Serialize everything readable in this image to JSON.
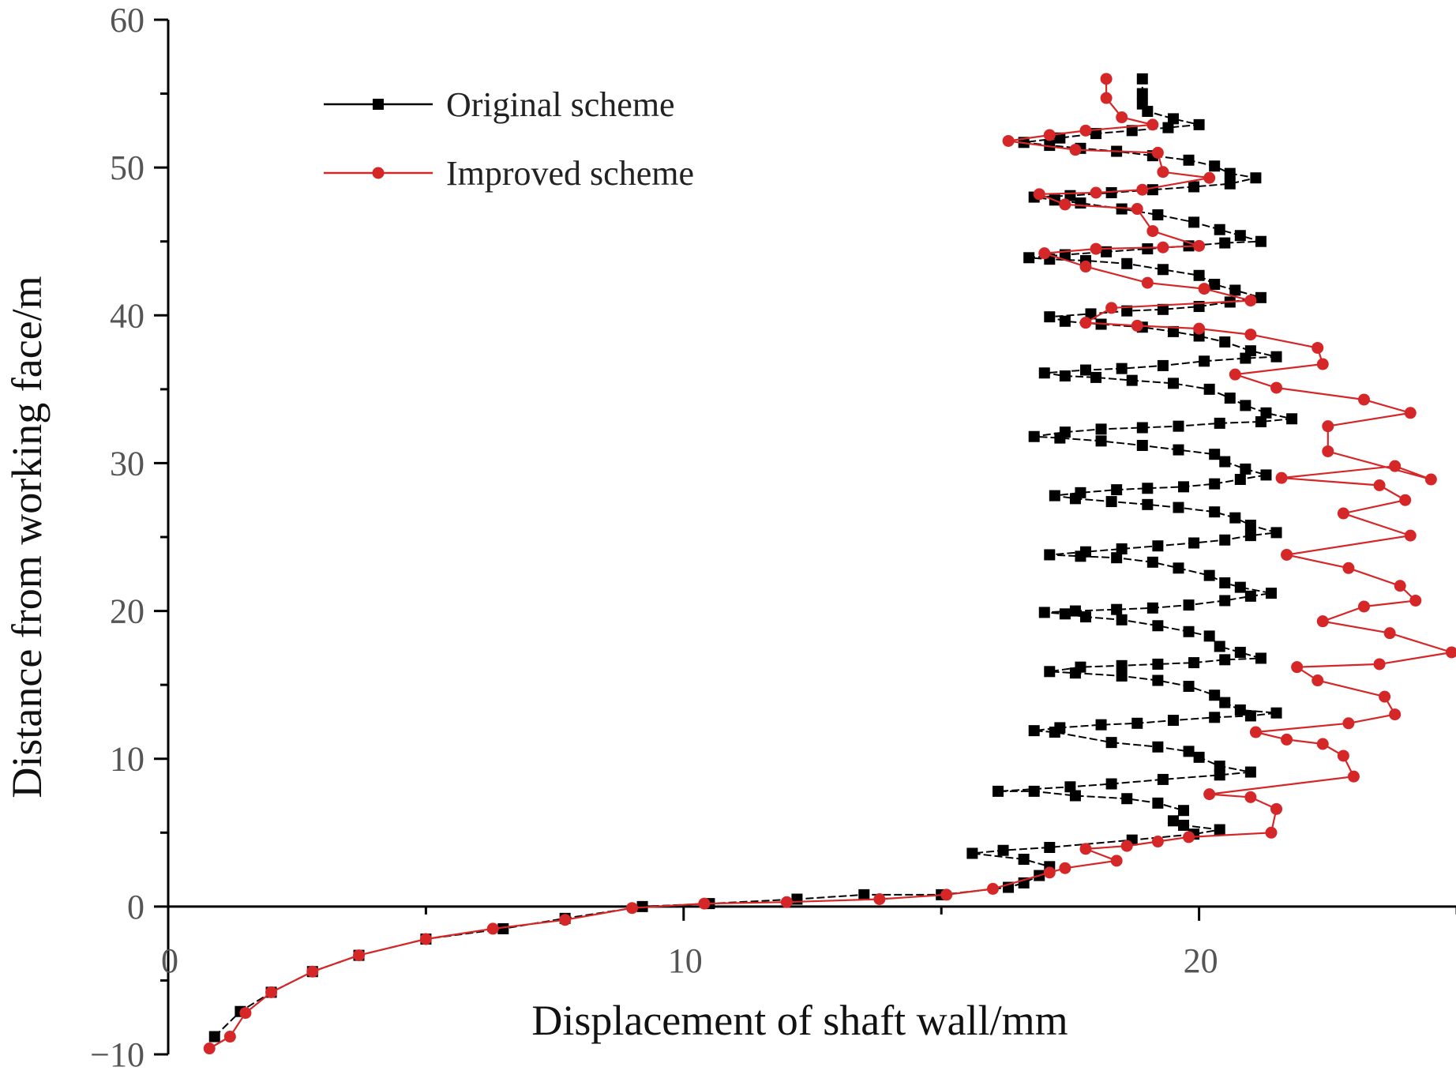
{
  "chart_data": {
    "type": "line",
    "xlabel": "Displacement of shaft wall/mm",
    "ylabel": "Distance from working face/m",
    "xlim": [
      0,
      25
    ],
    "ylim": [
      -10,
      60
    ],
    "xticks": [
      0,
      10,
      20
    ],
    "yticks": [
      -10,
      0,
      10,
      20,
      30,
      40,
      50,
      60
    ],
    "grid": false,
    "legend_position": "top-left",
    "series": [
      {
        "name": "Original scheme",
        "color": "#000000",
        "marker": "square",
        "points": [
          [
            0.9,
            -8.8
          ],
          [
            1.4,
            -7.1
          ],
          [
            2.0,
            -5.8
          ],
          [
            2.8,
            -4.4
          ],
          [
            3.7,
            -3.3
          ],
          [
            5.0,
            -2.2
          ],
          [
            6.5,
            -1.5
          ],
          [
            7.7,
            -0.8
          ],
          [
            9.2,
            0.0
          ],
          [
            10.5,
            0.2
          ],
          [
            12.2,
            0.5
          ],
          [
            13.5,
            0.8
          ],
          [
            15.0,
            0.8
          ],
          [
            16.3,
            1.3
          ],
          [
            16.6,
            1.6
          ],
          [
            16.9,
            2.1
          ],
          [
            17.1,
            2.7
          ],
          [
            16.6,
            3.2
          ],
          [
            15.6,
            3.6
          ],
          [
            16.2,
            3.8
          ],
          [
            17.1,
            4.0
          ],
          [
            18.7,
            4.5
          ],
          [
            19.9,
            4.9
          ],
          [
            20.4,
            5.2
          ],
          [
            19.7,
            5.5
          ],
          [
            19.5,
            5.8
          ],
          [
            19.7,
            6.5
          ],
          [
            19.2,
            7.0
          ],
          [
            18.6,
            7.3
          ],
          [
            17.6,
            7.5
          ],
          [
            16.8,
            7.8
          ],
          [
            16.1,
            7.8
          ],
          [
            17.5,
            8.1
          ],
          [
            18.3,
            8.3
          ],
          [
            19.3,
            8.6
          ],
          [
            20.4,
            8.9
          ],
          [
            21.0,
            9.1
          ],
          [
            20.4,
            9.5
          ],
          [
            20.0,
            10.1
          ],
          [
            19.8,
            10.5
          ],
          [
            19.2,
            10.8
          ],
          [
            18.3,
            11.1
          ],
          [
            17.2,
            11.8
          ],
          [
            16.8,
            11.9
          ],
          [
            17.3,
            12.1
          ],
          [
            18.1,
            12.3
          ],
          [
            18.8,
            12.4
          ],
          [
            19.5,
            12.6
          ],
          [
            20.3,
            12.8
          ],
          [
            21.0,
            12.9
          ],
          [
            21.5,
            13.1
          ],
          [
            20.8,
            13.3
          ],
          [
            20.5,
            13.8
          ],
          [
            20.3,
            14.3
          ],
          [
            19.8,
            14.9
          ],
          [
            19.2,
            15.3
          ],
          [
            18.5,
            15.6
          ],
          [
            17.6,
            15.8
          ],
          [
            17.1,
            15.9
          ],
          [
            17.7,
            16.2
          ],
          [
            18.5,
            16.3
          ],
          [
            19.2,
            16.4
          ],
          [
            19.9,
            16.5
          ],
          [
            20.5,
            16.7
          ],
          [
            21.2,
            16.8
          ],
          [
            20.8,
            17.2
          ],
          [
            20.4,
            17.6
          ],
          [
            20.2,
            18.3
          ],
          [
            19.8,
            18.6
          ],
          [
            19.2,
            19.0
          ],
          [
            18.5,
            19.4
          ],
          [
            17.8,
            19.6
          ],
          [
            17.4,
            19.8
          ],
          [
            17.0,
            19.9
          ],
          [
            17.6,
            20.0
          ],
          [
            18.4,
            20.1
          ],
          [
            19.1,
            20.2
          ],
          [
            19.8,
            20.4
          ],
          [
            20.5,
            20.7
          ],
          [
            21.0,
            21.0
          ],
          [
            21.4,
            21.2
          ],
          [
            20.8,
            21.6
          ],
          [
            20.5,
            21.9
          ],
          [
            20.2,
            22.4
          ],
          [
            19.6,
            22.9
          ],
          [
            19.1,
            23.3
          ],
          [
            18.4,
            23.6
          ],
          [
            17.7,
            23.7
          ],
          [
            17.1,
            23.8
          ],
          [
            17.8,
            24.0
          ],
          [
            18.5,
            24.2
          ],
          [
            19.2,
            24.4
          ],
          [
            19.9,
            24.6
          ],
          [
            20.5,
            24.8
          ],
          [
            21.0,
            25.1
          ],
          [
            21.5,
            25.3
          ],
          [
            21.0,
            25.8
          ],
          [
            20.7,
            26.3
          ],
          [
            20.3,
            26.7
          ],
          [
            19.6,
            27.0
          ],
          [
            19.0,
            27.2
          ],
          [
            18.3,
            27.4
          ],
          [
            17.6,
            27.6
          ],
          [
            17.2,
            27.8
          ],
          [
            17.7,
            28.0
          ],
          [
            18.4,
            28.2
          ],
          [
            19.0,
            28.3
          ],
          [
            19.7,
            28.4
          ],
          [
            20.3,
            28.6
          ],
          [
            20.8,
            28.9
          ],
          [
            21.3,
            29.2
          ],
          [
            20.9,
            29.6
          ],
          [
            20.5,
            30.1
          ],
          [
            20.3,
            30.6
          ],
          [
            19.6,
            30.9
          ],
          [
            18.9,
            31.2
          ],
          [
            18.1,
            31.5
          ],
          [
            17.3,
            31.7
          ],
          [
            16.8,
            31.8
          ],
          [
            17.4,
            32.1
          ],
          [
            18.1,
            32.3
          ],
          [
            18.9,
            32.4
          ],
          [
            19.6,
            32.5
          ],
          [
            20.4,
            32.7
          ],
          [
            21.2,
            32.8
          ],
          [
            21.8,
            33.0
          ],
          [
            21.3,
            33.4
          ],
          [
            20.9,
            33.9
          ],
          [
            20.6,
            34.4
          ],
          [
            20.2,
            35.0
          ],
          [
            19.5,
            35.4
          ],
          [
            18.7,
            35.6
          ],
          [
            18.0,
            35.8
          ],
          [
            17.4,
            35.9
          ],
          [
            17.0,
            36.1
          ],
          [
            17.8,
            36.3
          ],
          [
            18.5,
            36.4
          ],
          [
            19.3,
            36.6
          ],
          [
            20.1,
            36.9
          ],
          [
            20.9,
            37.1
          ],
          [
            21.5,
            37.2
          ],
          [
            21.0,
            37.6
          ],
          [
            20.5,
            38.2
          ],
          [
            20.0,
            38.6
          ],
          [
            19.5,
            38.9
          ],
          [
            18.9,
            39.2
          ],
          [
            18.1,
            39.4
          ],
          [
            17.4,
            39.6
          ],
          [
            17.1,
            39.9
          ],
          [
            17.9,
            40.1
          ],
          [
            18.6,
            40.3
          ],
          [
            19.3,
            40.4
          ],
          [
            20.0,
            40.6
          ],
          [
            20.6,
            40.9
          ],
          [
            21.2,
            41.2
          ],
          [
            20.7,
            41.7
          ],
          [
            20.3,
            42.1
          ],
          [
            20.0,
            42.7
          ],
          [
            19.3,
            43.1
          ],
          [
            18.6,
            43.5
          ],
          [
            17.8,
            43.7
          ],
          [
            17.1,
            43.8
          ],
          [
            16.7,
            43.9
          ],
          [
            17.4,
            44.1
          ],
          [
            18.2,
            44.3
          ],
          [
            19.0,
            44.5
          ],
          [
            19.8,
            44.7
          ],
          [
            20.5,
            44.9
          ],
          [
            21.2,
            45.0
          ],
          [
            20.8,
            45.4
          ],
          [
            20.4,
            45.8
          ],
          [
            19.9,
            46.3
          ],
          [
            19.2,
            46.8
          ],
          [
            18.5,
            47.2
          ],
          [
            17.7,
            47.6
          ],
          [
            17.2,
            47.8
          ],
          [
            16.8,
            48.0
          ],
          [
            17.5,
            48.1
          ],
          [
            18.3,
            48.3
          ],
          [
            19.1,
            48.5
          ],
          [
            19.9,
            48.7
          ],
          [
            20.6,
            48.9
          ],
          [
            21.1,
            49.3
          ],
          [
            20.6,
            49.6
          ],
          [
            20.3,
            50.1
          ],
          [
            19.8,
            50.5
          ],
          [
            19.1,
            50.8
          ],
          [
            18.4,
            51.1
          ],
          [
            17.7,
            51.3
          ],
          [
            17.1,
            51.5
          ],
          [
            16.6,
            51.7
          ],
          [
            17.3,
            52.0
          ],
          [
            18.0,
            52.3
          ],
          [
            18.7,
            52.5
          ],
          [
            19.4,
            52.7
          ],
          [
            20.0,
            52.9
          ],
          [
            19.5,
            53.3
          ],
          [
            19.0,
            53.8
          ],
          [
            18.9,
            54.3
          ],
          [
            18.9,
            55.0
          ],
          [
            18.9,
            56.0
          ]
        ]
      },
      {
        "name": "Improved scheme",
        "color": "#d62728",
        "marker": "circle",
        "points": [
          [
            0.8,
            -9.6
          ],
          [
            1.2,
            -8.8
          ],
          [
            1.5,
            -7.2
          ],
          [
            2.0,
            -5.8
          ],
          [
            2.8,
            -4.4
          ],
          [
            3.7,
            -3.3
          ],
          [
            5.0,
            -2.2
          ],
          [
            6.3,
            -1.5
          ],
          [
            7.7,
            -0.9
          ],
          [
            9.0,
            -0.1
          ],
          [
            10.4,
            0.2
          ],
          [
            12.0,
            0.3
          ],
          [
            13.8,
            0.5
          ],
          [
            15.1,
            0.8
          ],
          [
            16.0,
            1.2
          ],
          [
            17.1,
            2.3
          ],
          [
            17.4,
            2.6
          ],
          [
            18.4,
            3.1
          ],
          [
            17.8,
            3.9
          ],
          [
            18.6,
            4.1
          ],
          [
            19.2,
            4.4
          ],
          [
            19.8,
            4.7
          ],
          [
            21.4,
            5.0
          ],
          [
            21.5,
            6.6
          ],
          [
            21.0,
            7.4
          ],
          [
            20.2,
            7.6
          ],
          [
            23.0,
            8.8
          ],
          [
            22.8,
            10.2
          ],
          [
            22.4,
            11.0
          ],
          [
            21.7,
            11.3
          ],
          [
            21.1,
            11.8
          ],
          [
            22.9,
            12.4
          ],
          [
            23.8,
            13.0
          ],
          [
            23.6,
            14.2
          ],
          [
            22.3,
            15.3
          ],
          [
            21.9,
            16.2
          ],
          [
            23.5,
            16.4
          ],
          [
            24.9,
            17.2
          ],
          [
            23.7,
            18.5
          ],
          [
            22.4,
            19.3
          ],
          [
            23.2,
            20.3
          ],
          [
            24.2,
            20.7
          ],
          [
            23.9,
            21.7
          ],
          [
            22.9,
            22.9
          ],
          [
            21.7,
            23.8
          ],
          [
            24.1,
            25.1
          ],
          [
            22.8,
            26.6
          ],
          [
            24.0,
            27.5
          ],
          [
            23.5,
            28.5
          ],
          [
            21.6,
            29.0
          ],
          [
            23.8,
            29.8
          ],
          [
            24.5,
            28.9
          ],
          [
            22.5,
            30.8
          ],
          [
            22.5,
            32.5
          ],
          [
            24.1,
            33.4
          ],
          [
            23.2,
            34.3
          ],
          [
            21.5,
            35.1
          ],
          [
            20.7,
            36.0
          ],
          [
            22.4,
            36.7
          ],
          [
            22.3,
            37.8
          ],
          [
            21.0,
            38.7
          ],
          [
            20.0,
            39.1
          ],
          [
            18.8,
            39.3
          ],
          [
            17.8,
            39.5
          ],
          [
            18.3,
            40.5
          ],
          [
            21.0,
            41.0
          ],
          [
            20.1,
            41.8
          ],
          [
            19.0,
            42.2
          ],
          [
            17.8,
            43.3
          ],
          [
            17.0,
            44.2
          ],
          [
            18.0,
            44.5
          ],
          [
            19.3,
            44.6
          ],
          [
            20.0,
            44.7
          ],
          [
            19.1,
            45.7
          ],
          [
            18.8,
            47.2
          ],
          [
            17.4,
            47.5
          ],
          [
            16.9,
            48.2
          ],
          [
            18.0,
            48.3
          ],
          [
            18.9,
            48.5
          ],
          [
            20.2,
            49.3
          ],
          [
            19.3,
            49.7
          ],
          [
            19.2,
            51.0
          ],
          [
            17.6,
            51.2
          ],
          [
            16.3,
            51.8
          ],
          [
            17.1,
            52.2
          ],
          [
            17.8,
            52.5
          ],
          [
            19.1,
            52.9
          ],
          [
            18.5,
            53.4
          ],
          [
            18.2,
            54.7
          ],
          [
            18.2,
            56.0
          ]
        ]
      }
    ]
  }
}
